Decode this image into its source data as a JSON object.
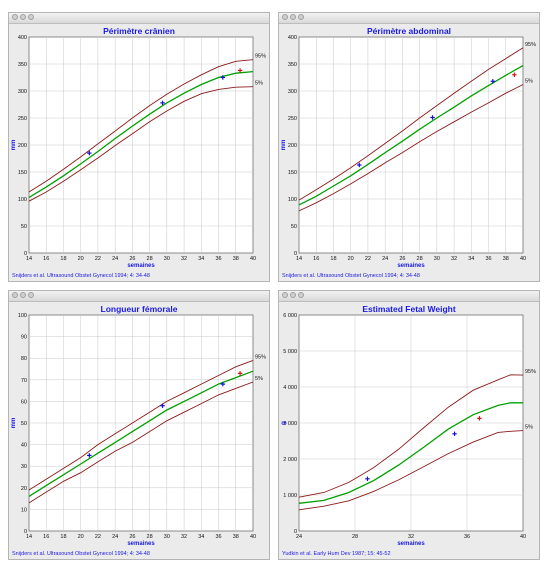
{
  "windows": [
    {
      "chart_data": {
        "type": "line",
        "title": "Périmètre crânien",
        "xlabel": "semaines",
        "ylabel": "mm",
        "xlim": [
          14,
          40
        ],
        "ylim": [
          0,
          400
        ],
        "x_ticks": [
          "14",
          "16",
          "18",
          "20",
          "22",
          "24",
          "26",
          "28",
          "30",
          "32",
          "34",
          "36",
          "38",
          "40"
        ],
        "y_ticks": [
          "0",
          "50",
          "100",
          "150",
          "200",
          "250",
          "300",
          "350",
          "400"
        ],
        "grid": true,
        "annotations": [
          "95%",
          "5%"
        ],
        "colors": {
          "percentile": "#8b1a1a",
          "median": "#00a000",
          "point_blue": "#1010e0",
          "point_red": "#e01010"
        },
        "series": [
          {
            "role": "p95",
            "x": [
              14,
              16,
              18,
              20,
              22,
              24,
              26,
              28,
              30,
              32,
              34,
              36,
              38,
              40
            ],
            "y": [
              113,
              133,
              155,
              178,
              202,
              226,
              250,
              273,
              294,
              313,
              330,
              345,
              355,
              358
            ]
          },
          {
            "role": "median",
            "x": [
              14,
              16,
              18,
              20,
              22,
              24,
              26,
              28,
              30,
              32,
              34,
              36,
              38,
              40
            ],
            "y": [
              103,
              122,
              143,
              165,
              188,
              212,
              235,
              257,
              278,
              296,
              312,
              325,
              333,
              336
            ]
          },
          {
            "role": "p5",
            "x": [
              14,
              16,
              18,
              20,
              22,
              24,
              26,
              28,
              30,
              32,
              34,
              36,
              38,
              40
            ],
            "y": [
              96,
              113,
              133,
              154,
              176,
              199,
              221,
              243,
              263,
              281,
              295,
              303,
              307,
              308
            ]
          }
        ],
        "points": [
          {
            "x": 21,
            "y": 185,
            "color": "blue"
          },
          {
            "x": 29.5,
            "y": 278,
            "color": "blue"
          },
          {
            "x": 36.5,
            "y": 325,
            "color": "blue"
          },
          {
            "x": 38.5,
            "y": 338,
            "color": "red"
          }
        ],
        "citation": "Snijders et al. Ultrasound Obstet Gynecol 1994; 4: 34-48"
      }
    },
    {
      "chart_data": {
        "type": "line",
        "title": "Périmètre abdominal",
        "xlabel": "semaines",
        "ylabel": "mm",
        "xlim": [
          14,
          40
        ],
        "ylim": [
          0,
          400
        ],
        "x_ticks": [
          "14",
          "16",
          "18",
          "20",
          "22",
          "24",
          "26",
          "28",
          "30",
          "32",
          "34",
          "36",
          "38",
          "40"
        ],
        "y_ticks": [
          "0",
          "50",
          "100",
          "150",
          "200",
          "250",
          "300",
          "350",
          "400"
        ],
        "grid": true,
        "annotations": [
          "95%",
          "5%"
        ],
        "colors": {
          "percentile": "#8b1a1a",
          "median": "#00a000",
          "point_blue": "#1010e0",
          "point_red": "#e01010"
        },
        "series": [
          {
            "role": "p95",
            "x": [
              14,
              16,
              18,
              20,
              22,
              24,
              26,
              28,
              30,
              32,
              34,
              36,
              38,
              40
            ],
            "y": [
              98,
              117,
              137,
              158,
              180,
              203,
              226,
              250,
              273,
              296,
              318,
              340,
              360,
              380
            ]
          },
          {
            "role": "median",
            "x": [
              14,
              16,
              18,
              20,
              22,
              24,
              26,
              28,
              30,
              32,
              34,
              36,
              38,
              40
            ],
            "y": [
              89,
              105,
              124,
              143,
              164,
              186,
              207,
              229,
              250,
              270,
              291,
              310,
              329,
              347
            ]
          },
          {
            "role": "p5",
            "x": [
              14,
              16,
              18,
              20,
              22,
              24,
              26,
              28,
              30,
              32,
              34,
              36,
              38,
              40
            ],
            "y": [
              78,
              93,
              110,
              128,
              147,
              167,
              186,
              206,
              225,
              243,
              261,
              278,
              296,
              312
            ]
          }
        ],
        "points": [
          {
            "x": 21,
            "y": 163,
            "color": "blue"
          },
          {
            "x": 29.5,
            "y": 251,
            "color": "blue"
          },
          {
            "x": 36.5,
            "y": 318,
            "color": "blue"
          },
          {
            "x": 39,
            "y": 330,
            "color": "red"
          }
        ],
        "citation": "Snijders et al. Ultrasound Obstet Gynecol 1994; 4: 34-48"
      }
    },
    {
      "chart_data": {
        "type": "line",
        "title": "Longueur fémorale",
        "xlabel": "semaines",
        "ylabel": "mm",
        "xlim": [
          14,
          40
        ],
        "ylim": [
          0,
          100
        ],
        "x_ticks": [
          "14",
          "16",
          "18",
          "20",
          "22",
          "24",
          "26",
          "28",
          "30",
          "32",
          "34",
          "36",
          "38",
          "40"
        ],
        "y_ticks": [
          "0",
          "10",
          "20",
          "30",
          "40",
          "50",
          "60",
          "70",
          "80",
          "90",
          "100"
        ],
        "grid": true,
        "annotations": [
          "95%",
          "5%"
        ],
        "colors": {
          "percentile": "#8b1a1a",
          "median": "#00a000",
          "point_blue": "#1010e0",
          "point_red": "#e01010"
        },
        "series": [
          {
            "role": "p95",
            "x": [
              14,
              16,
              18,
              20,
              22,
              24,
              26,
              28,
              30,
              32,
              34,
              36,
              38,
              40
            ],
            "y": [
              19,
              24,
              29,
              34,
              40,
              45,
              50,
              55,
              60,
              64,
              68,
              72,
              76,
              79
            ]
          },
          {
            "role": "median",
            "x": [
              14,
              16,
              18,
              20,
              22,
              24,
              26,
              28,
              30,
              32,
              34,
              36,
              38,
              40
            ],
            "y": [
              16,
              21,
              26,
              31,
              36,
              41,
              46,
              51,
              56,
              60,
              64,
              68,
              71,
              74
            ]
          },
          {
            "role": "p5",
            "x": [
              14,
              16,
              18,
              20,
              22,
              24,
              26,
              28,
              30,
              32,
              34,
              36,
              38,
              40
            ],
            "y": [
              13,
              18,
              23,
              27,
              32,
              37,
              41,
              46,
              51,
              55,
              59,
              63,
              66,
              69
            ]
          }
        ],
        "points": [
          {
            "x": 21,
            "y": 35,
            "color": "blue"
          },
          {
            "x": 29.5,
            "y": 58,
            "color": "blue"
          },
          {
            "x": 36.5,
            "y": 68,
            "color": "blue"
          },
          {
            "x": 38.5,
            "y": 73,
            "color": "red"
          }
        ],
        "citation": "Snijders et al. Ultrasound Obstet Gynecol 1994; 4: 34-48"
      }
    },
    {
      "chart_data": {
        "type": "line",
        "title": "Estimated Fetal Weight",
        "xlabel": "semaines",
        "ylabel": "g",
        "xlim": [
          24,
          42
        ],
        "ylim": [
          0,
          6000
        ],
        "x_ticks": [
          "24",
          "28",
          "32",
          "36",
          "40"
        ],
        "y_ticks": [
          "0",
          "1 000",
          "2 000",
          "3 000",
          "4 000",
          "5 000",
          "6 000"
        ],
        "grid": true,
        "annotations": [
          "95%",
          "5%"
        ],
        "colors": {
          "percentile": "#8b1a1a",
          "median": "#00a000",
          "point_blue": "#1010e0",
          "point_red": "#e01010"
        },
        "series": [
          {
            "role": "p95",
            "x": [
              24,
              26,
              28,
              30,
              32,
              34,
              36,
              38,
              40,
              41,
              42
            ],
            "y": [
              940,
              1070,
              1350,
              1760,
              2270,
              2860,
              3440,
              3910,
              4200,
              4340,
              4330
            ]
          },
          {
            "role": "median",
            "x": [
              24,
              26,
              28,
              30,
              32,
              34,
              36,
              38,
              40,
              41,
              42
            ],
            "y": [
              770,
              850,
              1070,
              1400,
              1830,
              2320,
              2830,
              3230,
              3490,
              3560,
              3560
            ]
          },
          {
            "role": "p5",
            "x": [
              24,
              26,
              28,
              30,
              32,
              34,
              36,
              38,
              40,
              41,
              42
            ],
            "y": [
              590,
              690,
              840,
              1100,
              1420,
              1780,
              2150,
              2470,
              2740,
              2770,
              2790
            ]
          }
        ],
        "points": [
          {
            "x": 29.5,
            "y": 1450,
            "color": "blue"
          },
          {
            "x": 36.5,
            "y": 2700,
            "color": "blue"
          },
          {
            "x": 38.5,
            "y": 3130,
            "color": "red"
          }
        ],
        "citation": "Yudkin et al. Early Hum Dev 1987; 15: 45-52"
      }
    }
  ]
}
